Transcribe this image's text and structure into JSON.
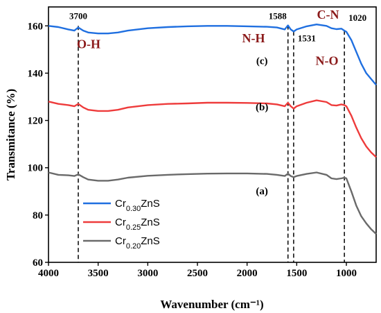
{
  "chart_data": {
    "type": "line",
    "xlabel": "Wavenumber (cm⁻¹)",
    "ylabel": "Transmitance (%)",
    "xlim": [
      4000,
      700
    ],
    "ylim": [
      60,
      168
    ],
    "x_ticks": [
      4000,
      3500,
      3000,
      2500,
      2000,
      1500,
      1000
    ],
    "y_ticks": [
      60,
      80,
      100,
      120,
      140,
      160
    ],
    "grid": false,
    "legend_position": "bottom-left",
    "colors": {
      "c": "#1f6fe0",
      "b": "#ee3b3b",
      "a": "#6a6a6a",
      "annotation": "#8b1a1a"
    },
    "series": [
      {
        "key": "c",
        "legend_base": "Cr",
        "legend_sub": "0.30",
        "legend_suffix": "ZnS",
        "curve_label": "(c)",
        "color": "#1f6fe0",
        "x": [
          4000,
          3900,
          3800,
          3740,
          3700,
          3650,
          3600,
          3500,
          3400,
          3300,
          3200,
          3000,
          2800,
          2600,
          2400,
          2200,
          2000,
          1800,
          1700,
          1620,
          1588,
          1560,
          1531,
          1500,
          1400,
          1300,
          1200,
          1150,
          1100,
          1050,
          1020,
          1000,
          950,
          900,
          850,
          800,
          750,
          700
        ],
        "y": [
          160,
          159.5,
          158.5,
          158,
          159.3,
          158,
          157.2,
          156.8,
          156.8,
          157.2,
          158,
          159,
          159.5,
          159.8,
          160,
          160,
          159.8,
          159.6,
          159.3,
          158.5,
          160.2,
          158.5,
          157.6,
          158.5,
          159.8,
          160.6,
          160,
          159,
          158.6,
          158.8,
          158,
          157.5,
          154,
          149,
          144,
          140,
          137.5,
          135
        ]
      },
      {
        "key": "b",
        "legend_base": "Cr",
        "legend_sub": "0.25",
        "legend_suffix": "ZnS",
        "curve_label": "(b)",
        "color": "#ee3b3b",
        "x": [
          4000,
          3900,
          3800,
          3740,
          3700,
          3650,
          3600,
          3500,
          3400,
          3300,
          3200,
          3000,
          2800,
          2600,
          2400,
          2200,
          2000,
          1800,
          1700,
          1620,
          1588,
          1560,
          1531,
          1500,
          1400,
          1300,
          1200,
          1150,
          1100,
          1050,
          1020,
          1000,
          950,
          900,
          850,
          800,
          750,
          700
        ],
        "y": [
          128,
          127,
          126.5,
          126,
          127,
          125.5,
          124.5,
          124,
          124,
          124.5,
          125.5,
          126.5,
          127,
          127.2,
          127.5,
          127.5,
          127.4,
          127.2,
          126.8,
          126,
          127.5,
          126,
          125,
          126,
          127.5,
          128.5,
          127.8,
          126.5,
          126.3,
          126.8,
          126.5,
          126,
          122,
          117,
          112.5,
          109,
          106.5,
          104.5
        ]
      },
      {
        "key": "a",
        "legend_base": "Cr",
        "legend_sub": "0.20",
        "legend_suffix": "ZnS",
        "curve_label": "(a)",
        "color": "#6a6a6a",
        "x": [
          4000,
          3900,
          3800,
          3740,
          3700,
          3650,
          3600,
          3500,
          3400,
          3300,
          3200,
          3000,
          2800,
          2600,
          2400,
          2200,
          2000,
          1800,
          1700,
          1620,
          1588,
          1560,
          1531,
          1500,
          1400,
          1300,
          1200,
          1150,
          1100,
          1050,
          1020,
          1000,
          950,
          900,
          850,
          800,
          750,
          700
        ],
        "y": [
          98,
          97,
          96.8,
          96.5,
          97.2,
          96,
          95,
          94.5,
          94.5,
          95,
          95.8,
          96.6,
          97,
          97.3,
          97.5,
          97.6,
          97.6,
          97.4,
          97,
          96.5,
          97.5,
          96.5,
          96,
          96.5,
          97.4,
          98,
          97,
          95.5,
          95.2,
          95.5,
          95.8,
          95.5,
          90,
          84,
          79.5,
          76.5,
          74,
          72
        ]
      }
    ],
    "markers": [
      {
        "x": 3700,
        "label": "3700",
        "y_top": 160,
        "y_bottom": 60
      },
      {
        "x": 1588,
        "label": "1588",
        "y_top": 160.2,
        "y_bottom": 60
      },
      {
        "x": 1531,
        "label": "1531",
        "y_top": 157.6,
        "y_bottom": 60
      },
      {
        "x": 1020,
        "label": "1020",
        "y_top": 158,
        "y_bottom": 60
      }
    ],
    "group_labels": [
      {
        "text": "O-H",
        "x": 3595,
        "y": 150.5
      },
      {
        "text": "N-H",
        "x": 1935,
        "y": 153
      },
      {
        "text": "C-N",
        "x": 1185,
        "y": 163
      },
      {
        "text": "N-O",
        "x": 1195,
        "y": 143.5
      }
    ]
  }
}
